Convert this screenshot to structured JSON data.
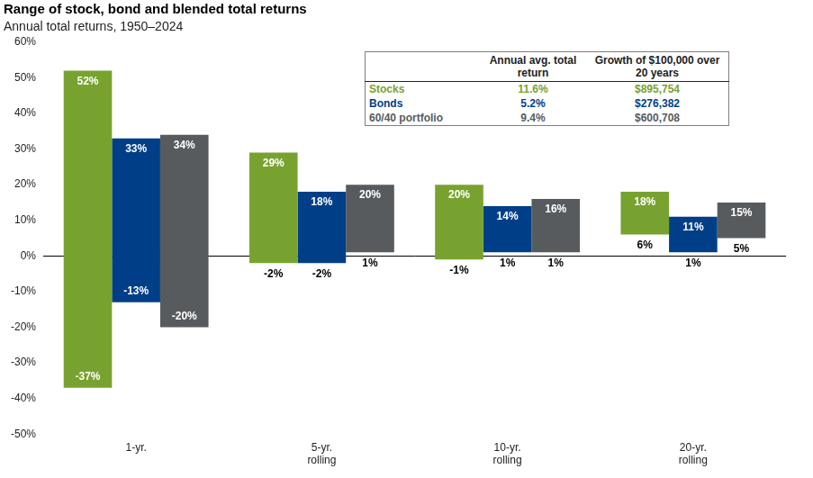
{
  "chart_data": {
    "type": "bar",
    "title": "Range of stock, bond and blended total returns",
    "subtitle": "Annual total returns, 1950–2024",
    "categories": [
      "1-yr.",
      "5-yr. rolling",
      "10-yr. rolling",
      "20-yr. rolling"
    ],
    "series": [
      {
        "name": "Stocks",
        "color": "#78a22f",
        "values": [
          [
            -37,
            52
          ],
          [
            -2,
            29
          ],
          [
            -1,
            20
          ],
          [
            6,
            18
          ]
        ],
        "value_labels": [
          [
            "-37%",
            "52%"
          ],
          [
            "-2%",
            "29%"
          ],
          [
            "-1%",
            "20%"
          ],
          [
            "6%",
            "18%"
          ]
        ]
      },
      {
        "name": "Bonds",
        "color": "#003f87",
        "values": [
          [
            -13,
            33
          ],
          [
            -2,
            18
          ],
          [
            1,
            14
          ],
          [
            1,
            11
          ]
        ],
        "value_labels": [
          [
            "-13%",
            "33%"
          ],
          [
            "-2%",
            "18%"
          ],
          [
            "1%",
            "14%"
          ],
          [
            "1%",
            "11%"
          ]
        ]
      },
      {
        "name": "60/40 portfolio",
        "color": "#575b5e",
        "values": [
          [
            -20,
            34
          ],
          [
            1,
            20
          ],
          [
            1,
            16
          ],
          [
            5,
            15
          ]
        ],
        "value_labels": [
          [
            "-20%",
            "34%"
          ],
          [
            "1%",
            "20%"
          ],
          [
            "1%",
            "16%"
          ],
          [
            "5%",
            "15%"
          ]
        ]
      }
    ],
    "ylim": [
      -50,
      60
    ],
    "yticks": [
      {
        "value": -50,
        "label": "-50%"
      },
      {
        "value": -40,
        "label": "-40%"
      },
      {
        "value": -30,
        "label": "-30%"
      },
      {
        "value": -20,
        "label": "-20%"
      },
      {
        "value": -10,
        "label": "-10%"
      },
      {
        "value": 0,
        "label": "0%"
      },
      {
        "value": 10,
        "label": "10%"
      },
      {
        "value": 20,
        "label": "20%"
      },
      {
        "value": 30,
        "label": "30%"
      },
      {
        "value": 40,
        "label": "40%"
      },
      {
        "value": 50,
        "label": "50%"
      },
      {
        "value": 60,
        "label": "60%"
      }
    ],
    "grid": false,
    "data_labels": true,
    "table": {
      "columns": [
        "",
        "Annual avg. total return",
        "Growth of $100,000 over 20 years"
      ],
      "rows": [
        [
          "Stocks",
          "11.6%",
          "$895,754"
        ],
        [
          "Bonds",
          "5.2%",
          "$276,382"
        ],
        [
          "60/40 portfolio",
          "9.4%",
          "$600,708"
        ]
      ]
    }
  }
}
